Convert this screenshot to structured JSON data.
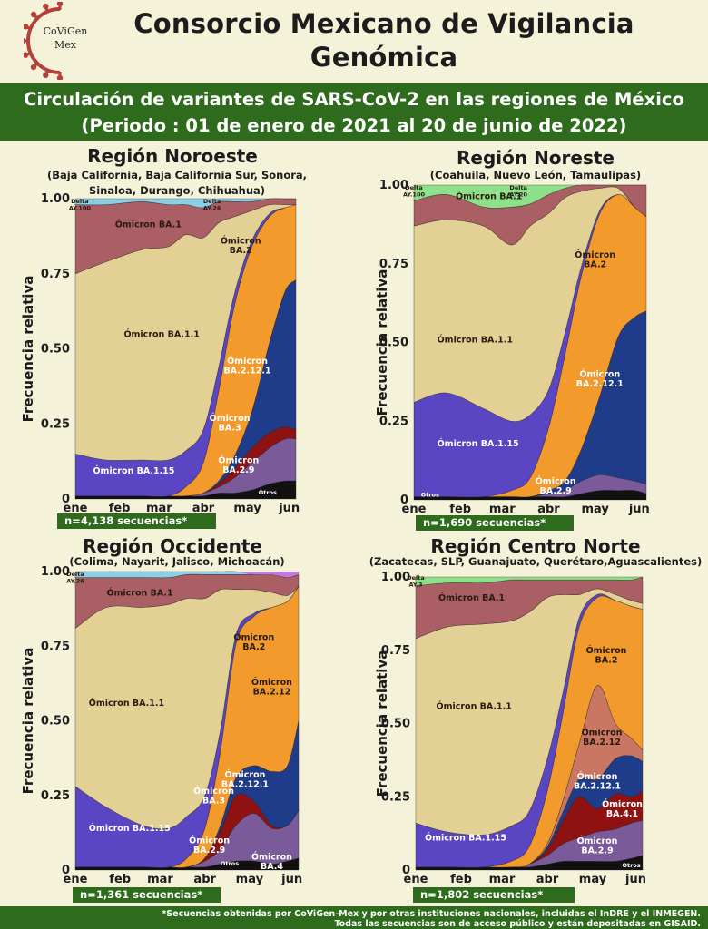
{
  "header": {
    "logo_text": "CoViGen\nMex",
    "logo_line1": "CoViGen",
    "logo_line2": "Mex",
    "title_line1": "Consorcio Mexicano de Vigilancia",
    "title_line2": "Genómica",
    "subtitle_line1": "Circulación de variantes de SARS-CoV-2 en las regiones de México",
    "subtitle_line2": "(Periodo : 01 de enero de 2021 al 20 de junio de 2022)"
  },
  "footer": {
    "line1": "*Secuencias obtenidas por CoViGen-Mex y por otras instituciones nacionales, incluidas el InDRE y el INMEGEN.",
    "line2": "Todas las secuencias son de acceso público y están depositadas en GISAID."
  },
  "colors": {
    "background": "#f5f2da",
    "band": "#2e6b1c",
    "BA.1.1": "#e3d095",
    "BA.1": "#a95f63",
    "BA.1.15": "#5a45c2",
    "BA.2": "#f39a2c",
    "BA.2.12.1": "#1f3c8a",
    "BA.3": "#8e1212",
    "BA.2.9": "#7a5a99",
    "Otros": "#111111",
    "Delta": "#8ee08a"
  },
  "chart_data": [
    {
      "type": "area",
      "region": "Región Noroeste",
      "states": "(Baja California, Baja California Sur, Sonora, Sinaloa, Durango, Chihuahua)",
      "states_line1": "(Baja California, Baja California Sur, Sonora,",
      "states_line2": "Sinaloa, Durango, Chihuahua)",
      "ylabel": "Frecuencia relativa",
      "ylim": [
        0,
        1
      ],
      "yticks": [
        "0",
        "0.25",
        "0.50",
        "0.75",
        "1.00"
      ],
      "xticks": [
        "ene",
        "feb",
        "mar",
        "abr",
        "may",
        "jun"
      ],
      "n_label": "n=4,138 secuencias*",
      "x": [
        0,
        0.14,
        0.3,
        0.42,
        0.5,
        0.58,
        0.65,
        0.72,
        0.8,
        0.88,
        0.95,
        1.0
      ],
      "series": [
        {
          "name": "Otros",
          "values": [
            0.01,
            0.01,
            0.01,
            0.01,
            0.01,
            0.01,
            0.02,
            0.02,
            0.03,
            0.05,
            0.06,
            0.06
          ]
        },
        {
          "name": "Ómicron BA.2.9",
          "values": [
            0.0,
            0.0,
            0.0,
            0.0,
            0.0,
            0.01,
            0.02,
            0.05,
            0.09,
            0.12,
            0.14,
            0.14
          ]
        },
        {
          "name": "Ómicron BA.3",
          "values": [
            0.0,
            0.0,
            0.0,
            0.0,
            0.0,
            0.0,
            0.01,
            0.03,
            0.05,
            0.05,
            0.04,
            0.03
          ]
        },
        {
          "name": "Ómicron BA.2.12.1",
          "values": [
            0.0,
            0.0,
            0.0,
            0.0,
            0.0,
            0.0,
            0.01,
            0.04,
            0.12,
            0.3,
            0.45,
            0.5
          ]
        },
        {
          "name": "Ómicron BA.2",
          "values": [
            0.0,
            0.0,
            0.0,
            0.0,
            0.03,
            0.1,
            0.3,
            0.5,
            0.55,
            0.42,
            0.28,
            0.25
          ]
        },
        {
          "name": "Ómicron BA.1.15",
          "values": [
            0.14,
            0.12,
            0.12,
            0.12,
            0.12,
            0.11,
            0.08,
            0.04,
            0.02,
            0.01,
            0.0,
            0.0
          ]
        },
        {
          "name": "Ómicron BA.1.1",
          "values": [
            0.6,
            0.66,
            0.7,
            0.71,
            0.72,
            0.64,
            0.48,
            0.26,
            0.1,
            0.03,
            0.01,
            0.0
          ]
        },
        {
          "name": "Ómicron BA.1",
          "values": [
            0.23,
            0.19,
            0.16,
            0.14,
            0.1,
            0.1,
            0.07,
            0.05,
            0.03,
            0.02,
            0.02,
            0.02
          ]
        },
        {
          "name": "Delta AY.26",
          "values": [
            0.02,
            0.02,
            0.01,
            0.02,
            0.02,
            0.03,
            0.01,
            0.01,
            0.01,
            0.0,
            0.0,
            0.0
          ]
        }
      ],
      "labels": [
        {
          "text": "Delta",
          "text2": "AY.100",
          "x": 0.02,
          "y": 0.985
        },
        {
          "text": "Ómicron BA.1",
          "x": 0.18,
          "y": 0.905
        },
        {
          "text": "Delta",
          "text2": "AY.26",
          "x": 0.62,
          "y": 0.985
        },
        {
          "text": "Ómicron BA.1.1",
          "x": 0.22,
          "y": 0.54
        },
        {
          "text": "Ómicron",
          "text2": "BA.2",
          "x": 0.75,
          "y": 0.85
        },
        {
          "text": "Ómicron",
          "text2": "BA.2.12.1",
          "x": 0.78,
          "y": 0.45
        },
        {
          "text": "Ómicron",
          "text2": "BA.3",
          "x": 0.7,
          "y": 0.26
        },
        {
          "text": "Ómicron BA.1.15",
          "x": 0.08,
          "y": 0.085
        },
        {
          "text": "Ómicron",
          "text2": "BA.2.9",
          "x": 0.74,
          "y": 0.12
        },
        {
          "text": "Otros",
          "x": 0.83,
          "y": 0.015
        }
      ]
    },
    {
      "type": "area",
      "region": "Región Noreste",
      "states": "(Coahuila, Nuevo León, Tamaulipas)",
      "states_line1": "(Coahuila, Nuevo León, Tamaulipas)",
      "states_line2": "",
      "ylabel": "Frecuencia relativa",
      "ylim": [
        0,
        1
      ],
      "yticks": [
        "0",
        "0.25",
        "0.50",
        "0.75",
        "1.00"
      ],
      "xticks": [
        "ene",
        "feb",
        "mar",
        "abr",
        "may",
        "jun"
      ],
      "n_label": "n=1,690 secuencias*",
      "x": [
        0,
        0.14,
        0.3,
        0.42,
        0.5,
        0.58,
        0.65,
        0.72,
        0.8,
        0.88,
        0.95,
        1.0
      ],
      "series": [
        {
          "name": "Otros",
          "values": [
            0.01,
            0.01,
            0.01,
            0.01,
            0.01,
            0.01,
            0.01,
            0.02,
            0.03,
            0.03,
            0.03,
            0.02
          ]
        },
        {
          "name": "Ómicron BA.2.9",
          "values": [
            0.0,
            0.0,
            0.0,
            0.0,
            0.0,
            0.01,
            0.02,
            0.04,
            0.05,
            0.04,
            0.03,
            0.03
          ]
        },
        {
          "name": "Ómicron BA.2.12.1",
          "values": [
            0.0,
            0.0,
            0.0,
            0.0,
            0.0,
            0.01,
            0.03,
            0.1,
            0.25,
            0.45,
            0.52,
            0.55
          ]
        },
        {
          "name": "Ómicron BA.2",
          "values": [
            0.0,
            0.0,
            0.0,
            0.02,
            0.06,
            0.2,
            0.4,
            0.55,
            0.58,
            0.45,
            0.35,
            0.3
          ]
        },
        {
          "name": "Ómicron BA.1.15",
          "values": [
            0.3,
            0.33,
            0.28,
            0.22,
            0.2,
            0.12,
            0.07,
            0.03,
            0.01,
            0.0,
            0.0,
            0.0
          ]
        },
        {
          "name": "Ómicron BA.1.1",
          "values": [
            0.56,
            0.55,
            0.58,
            0.56,
            0.6,
            0.56,
            0.43,
            0.24,
            0.07,
            0.02,
            0.0,
            0.0
          ]
        },
        {
          "name": "Ómicron BA.1",
          "values": [
            0.08,
            0.08,
            0.06,
            0.12,
            0.07,
            0.06,
            0.03,
            0.02,
            0.01,
            0.01,
            0.07,
            0.1
          ]
        },
        {
          "name": "Delta AY.20",
          "values": [
            0.05,
            0.03,
            0.07,
            0.07,
            0.06,
            0.03,
            0.01,
            0.0,
            0.0,
            0.0,
            0.0,
            0.0
          ]
        }
      ],
      "labels": [
        {
          "text": "Delta",
          "text2": "AY.100",
          "x": 0.0,
          "y": 0.985
        },
        {
          "text": "Ómicron BA.1",
          "x": 0.18,
          "y": 0.955
        },
        {
          "text": "Delta",
          "text2": "AY.20",
          "x": 0.45,
          "y": 0.985
        },
        {
          "text": "Ómicron BA.1.1",
          "x": 0.1,
          "y": 0.5
        },
        {
          "text": "Ómicron",
          "text2": "BA.2",
          "x": 0.78,
          "y": 0.77
        },
        {
          "text": "Ómicron",
          "text2": "BA.2.12.1",
          "x": 0.8,
          "y": 0.39
        },
        {
          "text": "Ómicron BA.1.15",
          "x": 0.1,
          "y": 0.17
        },
        {
          "text": "Ómicron",
          "text2": "BA.2.9",
          "x": 0.61,
          "y": 0.05
        },
        {
          "text": "Otros",
          "x": 0.03,
          "y": 0.01
        }
      ]
    },
    {
      "type": "area",
      "region": "Región Occidente",
      "states": "(Colima, Nayarit, Jalisco, Michoacán)",
      "states_line1": "(Colima, Nayarit, Jalisco, Michoacán)",
      "states_line2": "",
      "ylabel": "Frecuencia relativa",
      "ylim": [
        0,
        1
      ],
      "yticks": [
        "0",
        "0.25",
        "0.50",
        "0.75",
        "1.00"
      ],
      "xticks": [
        "ene",
        "feb",
        "mar",
        "abr",
        "may",
        "jun"
      ],
      "n_label": "n=1,361 secuencias*",
      "x": [
        0,
        0.14,
        0.3,
        0.42,
        0.5,
        0.58,
        0.65,
        0.72,
        0.8,
        0.88,
        0.95,
        1.0
      ],
      "series": [
        {
          "name": "Otros",
          "values": [
            0.01,
            0.01,
            0.01,
            0.01,
            0.01,
            0.01,
            0.02,
            0.03,
            0.03,
            0.02,
            0.03,
            0.04
          ]
        },
        {
          "name": "Ómicron BA.2.9",
          "values": [
            0.0,
            0.0,
            0.0,
            0.0,
            0.0,
            0.02,
            0.05,
            0.12,
            0.16,
            0.12,
            0.12,
            0.16
          ]
        },
        {
          "name": "Ómicron BA.3",
          "values": [
            0.0,
            0.0,
            0.0,
            0.0,
            0.0,
            0.01,
            0.06,
            0.1,
            0.04,
            0.01,
            0.0,
            0.0
          ]
        },
        {
          "name": "Ómicron BA.2.12.1",
          "values": [
            0.0,
            0.0,
            0.0,
            0.0,
            0.0,
            0.0,
            0.02,
            0.06,
            0.12,
            0.18,
            0.2,
            0.3
          ]
        },
        {
          "name": "Ómicron BA.2",
          "values": [
            0.0,
            0.0,
            0.0,
            0.0,
            0.03,
            0.1,
            0.25,
            0.45,
            0.5,
            0.55,
            0.55,
            0.45
          ]
        },
        {
          "name": "Ómicron BA.1.15",
          "values": [
            0.27,
            0.2,
            0.14,
            0.13,
            0.14,
            0.11,
            0.07,
            0.03,
            0.01,
            0.0,
            0.0,
            0.0
          ]
        },
        {
          "name": "Ómicron BA.1.1",
          "values": [
            0.53,
            0.67,
            0.73,
            0.75,
            0.73,
            0.66,
            0.47,
            0.15,
            0.08,
            0.05,
            0.02,
            0.0
          ]
        },
        {
          "name": "Ómicron BA.1",
          "values": [
            0.17,
            0.1,
            0.1,
            0.09,
            0.08,
            0.08,
            0.05,
            0.05,
            0.05,
            0.06,
            0.06,
            0.04
          ]
        },
        {
          "name": "Delta AY.26",
          "values": [
            0.02,
            0.02,
            0.02,
            0.02,
            0.01,
            0.01,
            0.01,
            0.01,
            0.0,
            0.0,
            0.0,
            0.0
          ]
        }
      ],
      "labels": [
        {
          "text": "Delta",
          "text2": "AY.26",
          "x": 0.0,
          "y": 0.985
        },
        {
          "text": "Ómicron BA.1",
          "x": 0.14,
          "y": 0.92
        },
        {
          "text": "Ómicron BA.1.1",
          "x": 0.06,
          "y": 0.55
        },
        {
          "text": "Ómicron",
          "text2": "BA.2",
          "x": 0.8,
          "y": 0.77
        },
        {
          "text": "Ómicron",
          "text2": "BA.2.12",
          "x": 0.88,
          "y": 0.62
        },
        {
          "text": "Ómicron",
          "text2": "BA.2.12.1",
          "x": 0.76,
          "y": 0.31
        },
        {
          "text": "Ómicron",
          "text2": "BA.3",
          "x": 0.62,
          "y": 0.255
        },
        {
          "text": "Ómicron BA.1.15",
          "x": 0.06,
          "y": 0.13
        },
        {
          "text": "Ómicron",
          "text2": "BA.2.9",
          "x": 0.6,
          "y": 0.09
        },
        {
          "text": "Otros",
          "x": 0.65,
          "y": 0.015
        },
        {
          "text": "Ómicron",
          "text2": "BA.4",
          "x": 0.88,
          "y": 0.035
        }
      ]
    },
    {
      "type": "area",
      "region": "Región Centro Norte",
      "states": "(Zacatecas, SLP, Guanajuato, Querétaro,Aguascalientes)",
      "states_line1": "(Zacatecas, SLP, Guanajuato, Querétaro,Aguascalientes)",
      "states_line2": "",
      "ylabel": "Frecuencia relativa",
      "ylim": [
        0,
        1
      ],
      "yticks": [
        "0",
        "0.25",
        "0.50",
        "0.75",
        "1.00"
      ],
      "xticks": [
        "ene",
        "feb",
        "mar",
        "abr",
        "may",
        "jun"
      ],
      "n_label": "n=1,802 secuencias*",
      "x": [
        0,
        0.14,
        0.3,
        0.42,
        0.5,
        0.58,
        0.65,
        0.72,
        0.8,
        0.88,
        0.95,
        1.0
      ],
      "series": [
        {
          "name": "Otros",
          "values": [
            0.01,
            0.01,
            0.01,
            0.01,
            0.01,
            0.02,
            0.03,
            0.03,
            0.03,
            0.03,
            0.04,
            0.05
          ]
        },
        {
          "name": "Ómicron BA.2.9",
          "values": [
            0.0,
            0.0,
            0.0,
            0.0,
            0.01,
            0.03,
            0.06,
            0.08,
            0.1,
            0.11,
            0.12,
            0.12
          ]
        },
        {
          "name": "Ómicron BA.4.1",
          "values": [
            0.0,
            0.0,
            0.0,
            0.0,
            0.0,
            0.02,
            0.08,
            0.14,
            0.08,
            0.12,
            0.09,
            0.1
          ]
        },
        {
          "name": "Ómicron BA.2.12.1",
          "values": [
            0.0,
            0.0,
            0.0,
            0.0,
            0.0,
            0.01,
            0.03,
            0.06,
            0.1,
            0.12,
            0.14,
            0.1
          ]
        },
        {
          "name": "Ómicron BA.2.12",
          "values": [
            0.0,
            0.0,
            0.0,
            0.0,
            0.0,
            0.01,
            0.04,
            0.12,
            0.32,
            0.12,
            0.06,
            0.04
          ]
        },
        {
          "name": "Ómicron BA.2",
          "values": [
            0.0,
            0.0,
            0.0,
            0.02,
            0.06,
            0.18,
            0.3,
            0.4,
            0.3,
            0.42,
            0.45,
            0.48
          ]
        },
        {
          "name": "Ómicron BA.1.15",
          "values": [
            0.15,
            0.12,
            0.11,
            0.12,
            0.12,
            0.11,
            0.07,
            0.03,
            0.01,
            0.0,
            0.0,
            0.0
          ]
        },
        {
          "name": "Ómicron BA.1.1",
          "values": [
            0.63,
            0.7,
            0.72,
            0.7,
            0.68,
            0.55,
            0.33,
            0.08,
            0.02,
            0.02,
            0.02,
            0.02
          ]
        },
        {
          "name": "Ómicron BA.1",
          "values": [
            0.18,
            0.15,
            0.14,
            0.14,
            0.11,
            0.06,
            0.05,
            0.05,
            0.03,
            0.05,
            0.07,
            0.09
          ]
        },
        {
          "name": "Delta AY.3",
          "values": [
            0.03,
            0.02,
            0.02,
            0.01,
            0.01,
            0.01,
            0.01,
            0.01,
            0.01,
            0.01,
            0.01,
            0.0
          ]
        }
      ],
      "labels": [
        {
          "text": "Delta",
          "text2": "AY.3",
          "x": 0.0,
          "y": 0.99
        },
        {
          "text": "Ómicron BA.1",
          "x": 0.1,
          "y": 0.92
        },
        {
          "text": "Ómicron BA.1.1",
          "x": 0.09,
          "y": 0.55
        },
        {
          "text": "Ómicron",
          "text2": "BA.2",
          "x": 0.84,
          "y": 0.74
        },
        {
          "text": "Ómicron",
          "text2": "BA.2.12",
          "x": 0.82,
          "y": 0.46
        },
        {
          "text": "Ómicron",
          "text2": "BA.2.12.1",
          "x": 0.8,
          "y": 0.31
        },
        {
          "text": "Ómicron",
          "text2": "BA.4.1",
          "x": 0.91,
          "y": 0.215
        },
        {
          "text": "Ómicron BA.1.15",
          "x": 0.04,
          "y": 0.1
        },
        {
          "text": "Ómicron",
          "text2": "BA.2.9",
          "x": 0.8,
          "y": 0.09
        },
        {
          "text": "Otros",
          "x": 0.91,
          "y": 0.01
        }
      ]
    }
  ]
}
